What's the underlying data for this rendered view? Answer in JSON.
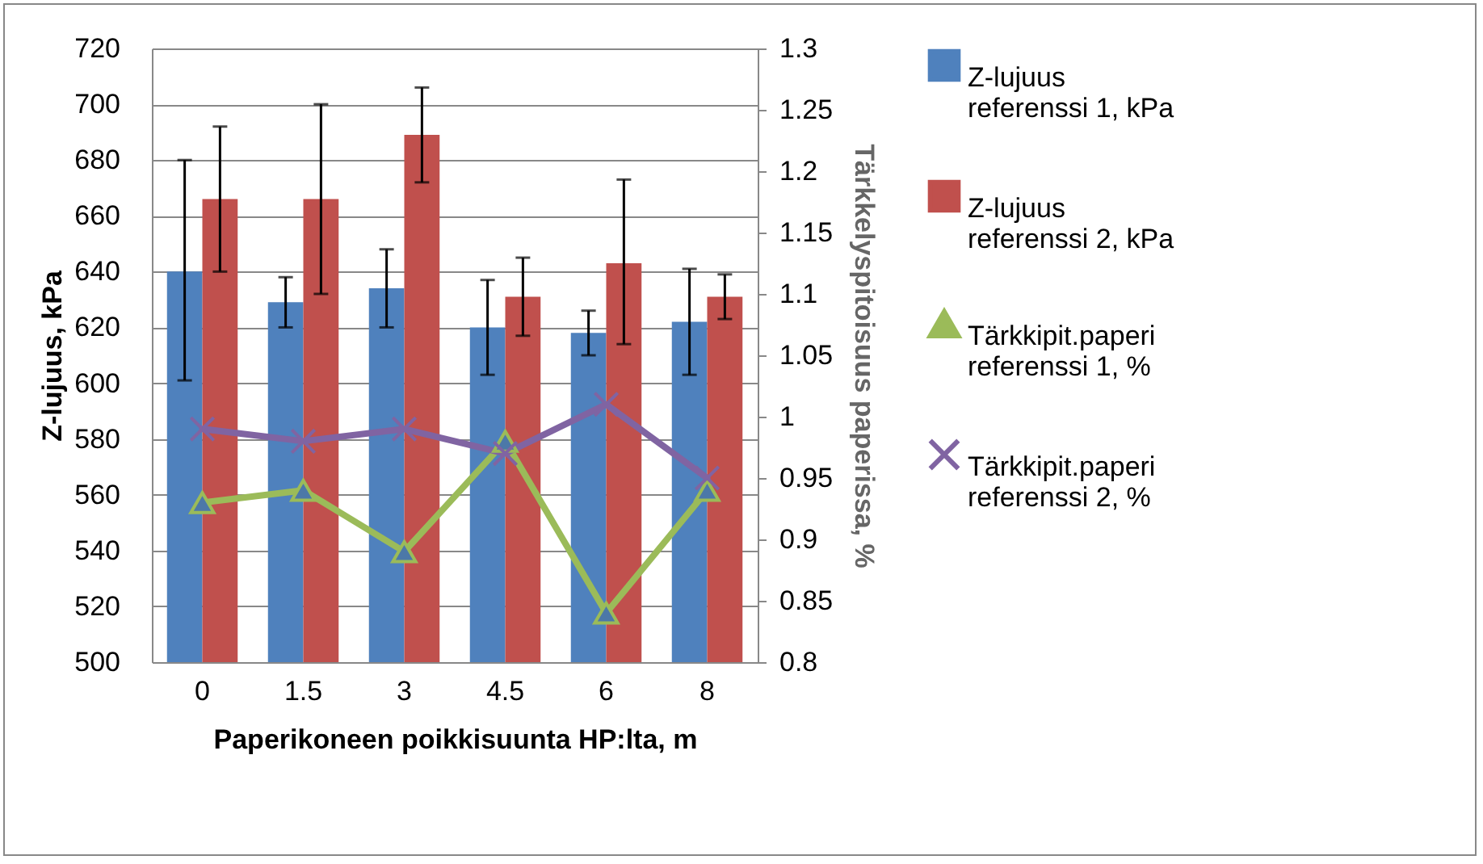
{
  "chart_data": {
    "type": "bar",
    "xlabel": "Paperikoneen poikkisuunta HP:lta, m",
    "ylabel": "Z-lujuus, kPa",
    "y2label": "Tärkkelyspitoisuus paperissa, %",
    "categories": [
      "0",
      "1.5",
      "3",
      "4.5",
      "6",
      "8"
    ],
    "series": [
      {
        "name": "Z-lujuus referenssi 1, kPa",
        "color": "#4f81bd",
        "values": [
          640,
          629,
          634,
          620,
          618,
          622
        ],
        "errors": [
          [
            601,
            680
          ],
          [
            620,
            638
          ],
          [
            620,
            648
          ],
          [
            603,
            637
          ],
          [
            610,
            626
          ],
          [
            603,
            641
          ]
        ]
      },
      {
        "name": "Z-lujuus referenssi 2, kPa",
        "color": "#c0504d",
        "values": [
          666,
          666,
          689,
          631,
          643,
          631
        ],
        "errors": [
          [
            640,
            692
          ],
          [
            632,
            700
          ],
          [
            672,
            706
          ],
          [
            617,
            645
          ],
          [
            614,
            673
          ],
          [
            623,
            639
          ]
        ]
      },
      {
        "name": "Tärkkipit.paperi referenssi 1, %",
        "type": "line",
        "axis": "y2",
        "marker": "triangle",
        "color": "#9bbb59",
        "values": [
          0.93,
          0.94,
          0.89,
          0.98,
          0.84,
          0.94
        ]
      },
      {
        "name": "Tärkkipit.paperi referenssi 2, %",
        "type": "line",
        "axis": "y2",
        "marker": "cross",
        "color": "#8064a2",
        "values": [
          0.99,
          0.98,
          0.99,
          0.97,
          1.01,
          0.95
        ]
      }
    ],
    "ylim": [
      500,
      720
    ],
    "yticks": [
      500,
      520,
      540,
      560,
      580,
      600,
      620,
      640,
      660,
      680,
      700,
      720
    ],
    "y2lim": [
      0.8,
      1.3
    ],
    "y2ticks": [
      0.8,
      0.85,
      0.9,
      0.95,
      1,
      1.05,
      1.1,
      1.15,
      1.2,
      1.25,
      1.3
    ],
    "grid": "y",
    "legend": "right"
  }
}
